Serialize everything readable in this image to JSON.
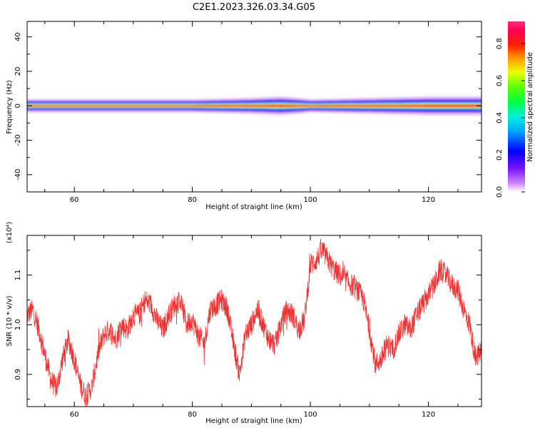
{
  "title": "C2E1.2023.326.03.34.G05",
  "chart_data": [
    {
      "type": "heatmap",
      "xlabel": "Height of straight line (km)",
      "ylabel": "Frequency (Hz)",
      "xlim": [
        52,
        129
      ],
      "ylim": [
        -50,
        49
      ],
      "xticks": [
        60,
        80,
        100,
        120
      ],
      "yticks": [
        -40,
        -20,
        0,
        20,
        40
      ],
      "colorbar": {
        "label": "Normalized spectral amplitude",
        "range": [
          0.0,
          0.92
        ],
        "ticks": [
          0.0,
          0.2,
          0.4,
          0.6,
          0.8
        ]
      },
      "band_center_hz": 0,
      "band_halfwidth_hz_profile": {
        "x": [
          52,
          60,
          70,
          80,
          90,
          95,
          98,
          100,
          110,
          120,
          129
        ],
        "halfwidth": [
          2.5,
          2.5,
          2.5,
          2.5,
          3.0,
          3.5,
          3.0,
          2.5,
          3.0,
          3.5,
          3.5
        ]
      }
    },
    {
      "type": "line",
      "xlabel": "Height of straight line (km)",
      "ylabel": "SNR (10 * v/v)",
      "scale_label": "(x10⁴)",
      "xlim": [
        52,
        129
      ],
      "ylim": [
        0.835,
        1.18
      ],
      "xticks": [
        60,
        80,
        100,
        120
      ],
      "yticks": [
        0.9,
        1.0,
        1.1
      ],
      "color": "#ee3333",
      "series": [
        {
          "x": [
            52,
            53,
            54,
            55,
            56,
            57,
            58,
            59,
            60,
            61,
            62,
            63,
            64,
            65,
            66,
            67,
            68,
            69,
            70,
            71,
            72,
            73,
            74,
            75,
            76,
            77,
            78,
            79,
            80,
            81,
            82,
            83,
            84,
            85,
            86,
            87,
            88,
            89,
            90,
            91,
            92,
            93,
            94,
            95,
            96,
            97,
            98,
            99,
            100,
            101,
            102,
            103,
            104,
            105,
            106,
            107,
            108,
            109,
            110,
            111,
            112,
            113,
            114,
            115,
            116,
            117,
            118,
            119,
            120,
            121,
            122,
            123,
            124,
            125,
            126,
            127,
            128,
            129
          ],
          "y": [
            1.02,
            1.03,
            0.99,
            0.94,
            0.89,
            0.87,
            0.93,
            0.97,
            0.93,
            0.88,
            0.855,
            0.875,
            0.94,
            0.98,
            0.99,
            0.97,
            1.0,
            0.99,
            1.02,
            1.02,
            1.05,
            1.04,
            1.01,
            0.99,
            1.02,
            1.04,
            1.05,
            1.0,
            1.01,
            0.98,
            0.96,
            1.03,
            1.04,
            1.05,
            1.03,
            0.96,
            0.9,
            0.98,
            1.0,
            1.03,
            1.0,
            0.97,
            0.96,
            1.0,
            1.03,
            1.02,
            0.99,
            1.01,
            1.12,
            1.13,
            1.15,
            1.13,
            1.11,
            1.1,
            1.09,
            1.08,
            1.07,
            1.05,
            0.99,
            0.92,
            0.93,
            0.96,
            0.95,
            0.98,
            1.0,
            0.99,
            1.02,
            1.04,
            1.06,
            1.08,
            1.11,
            1.1,
            1.08,
            1.07,
            1.03,
            1.0,
            0.93,
            0.95
          ]
        }
      ]
    }
  ]
}
